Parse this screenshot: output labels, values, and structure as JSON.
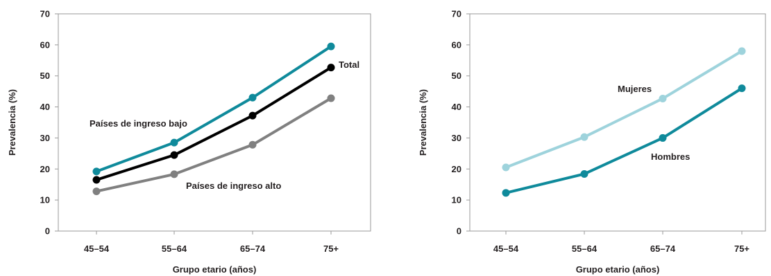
{
  "chart_data": [
    {
      "type": "line",
      "title": "",
      "xlabel": "Grupo etario (años)",
      "ylabel": "Prevalencia (%)",
      "ylim": [
        0,
        70
      ],
      "yticks": [
        0,
        10,
        20,
        30,
        40,
        50,
        60,
        70
      ],
      "categories": [
        "45–54",
        "55–64",
        "65–74",
        "75+"
      ],
      "grid": false,
      "legend": "inline labels",
      "series": [
        {
          "name": "Países de ingreso bajo",
          "color": "#0f8a9b",
          "values": [
            19.2,
            28.5,
            43,
            59.5
          ]
        },
        {
          "name": "Total",
          "color": "#000000",
          "values": [
            16.5,
            24.5,
            37.2,
            52.7
          ]
        },
        {
          "name": "Países de ingreso alto",
          "color": "#808080",
          "values": [
            12.8,
            18.3,
            27.8,
            42.8
          ]
        }
      ]
    },
    {
      "type": "line",
      "title": "",
      "xlabel": "Grupo etario (años)",
      "ylabel": "Prevalencia (%)",
      "ylim": [
        0,
        70
      ],
      "yticks": [
        0,
        10,
        20,
        30,
        40,
        50,
        60,
        70
      ],
      "categories": [
        "45–54",
        "55–64",
        "65–74",
        "75+"
      ],
      "grid": false,
      "legend": "inline labels",
      "series": [
        {
          "name": "Mujeres",
          "color": "#9ed3dc",
          "values": [
            20.5,
            30.3,
            42.7,
            58
          ]
        },
        {
          "name": "Hombres",
          "color": "#0f8a9b",
          "values": [
            12.3,
            18.4,
            30,
            46
          ]
        }
      ]
    }
  ]
}
